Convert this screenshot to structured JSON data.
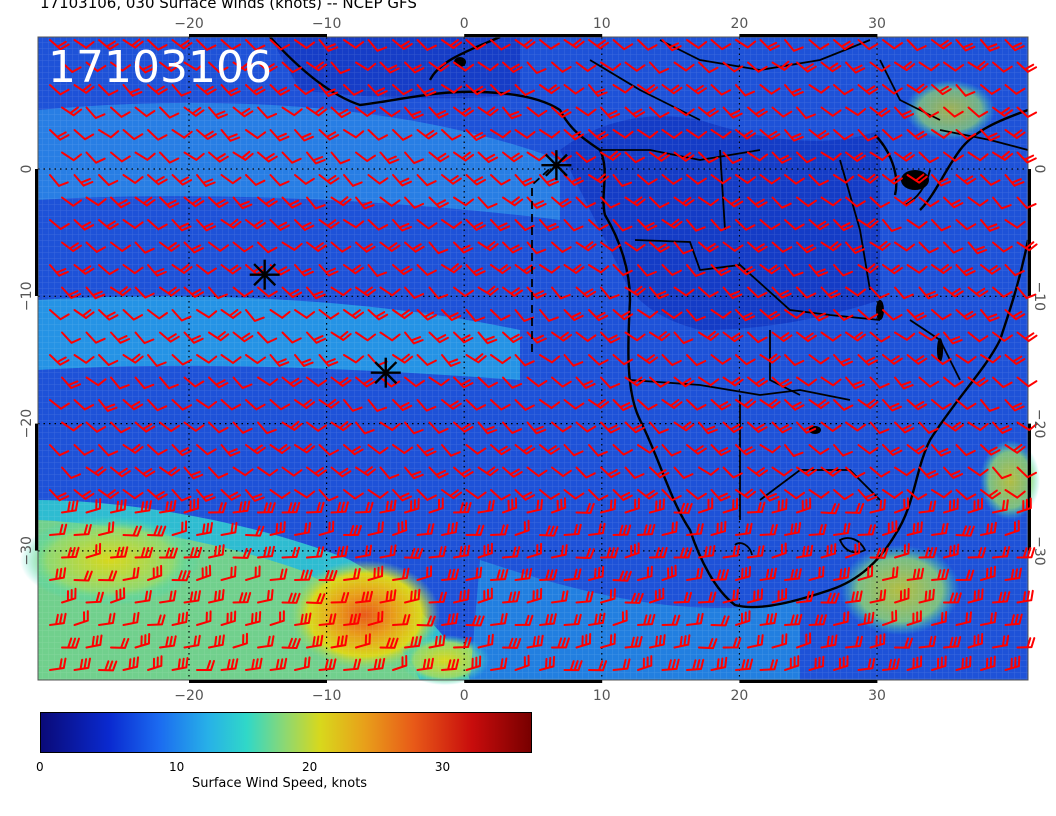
{
  "title": "17103106, 030 Surface winds (knots) -- NCEP GFS",
  "timestamp_label": "17103106",
  "map": {
    "lon_range": [
      -30,
      40
    ],
    "lat_range": [
      -40,
      10
    ],
    "lon_ticks": [
      -20,
      -10,
      0,
      10,
      20,
      30
    ],
    "lat_ticks": [
      0,
      -10,
      -20,
      -30
    ],
    "lon_tick_labels": [
      "−20",
      "−10",
      "0",
      "10",
      "20",
      "30"
    ],
    "lat_tick_labels": [
      "0",
      "−10",
      "−20",
      "−30"
    ],
    "barb_color": "#ff0000",
    "storm_markers": [
      {
        "lon": -14.5,
        "lat": -8.3
      },
      {
        "lon": -5.7,
        "lat": -16.0
      },
      {
        "lon": 6.7,
        "lat": 0.3
      }
    ]
  },
  "colorbar": {
    "title": "Surface Wind Speed, knots",
    "ticks": [
      "0",
      "10",
      "20",
      "30"
    ],
    "tick_values": [
      0,
      10,
      20,
      30
    ],
    "range": [
      0,
      37
    ],
    "colors": [
      "#0a0a78",
      "#0a2ad0",
      "#1b6af0",
      "#27b0e8",
      "#30d8c8",
      "#8fd870",
      "#d8d81c",
      "#e8a01a",
      "#e85a18",
      "#c80c0c",
      "#780000"
    ]
  }
}
